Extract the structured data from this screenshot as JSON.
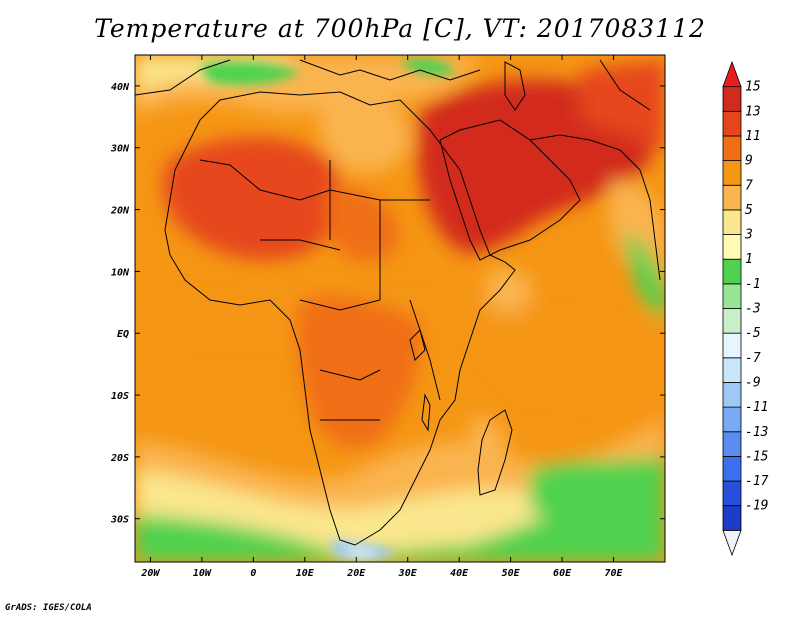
{
  "title": "Temperature at 700hPa [C], VT: 2017083112",
  "credit": "GrADS: IGES/COLA",
  "map": {
    "lon_range": [
      -23,
      80
    ],
    "lat_range": [
      -37,
      45
    ],
    "lat_ticks": [
      {
        "value": 40,
        "label": "40N"
      },
      {
        "value": 30,
        "label": "30N"
      },
      {
        "value": 20,
        "label": "20N"
      },
      {
        "value": 10,
        "label": "10N"
      },
      {
        "value": 0,
        "label": "EQ"
      },
      {
        "value": -10,
        "label": "10S"
      },
      {
        "value": -20,
        "label": "20S"
      },
      {
        "value": -30,
        "label": "30S"
      }
    ],
    "lon_ticks": [
      {
        "value": -20,
        "label": "20W"
      },
      {
        "value": -10,
        "label": "10W"
      },
      {
        "value": 0,
        "label": "0"
      },
      {
        "value": 10,
        "label": "10E"
      },
      {
        "value": 20,
        "label": "20E"
      },
      {
        "value": 30,
        "label": "30E"
      },
      {
        "value": 40,
        "label": "40E"
      },
      {
        "value": 50,
        "label": "50E"
      },
      {
        "value": 60,
        "label": "60E"
      },
      {
        "value": 70,
        "label": "70E"
      }
    ]
  },
  "colorbar": {
    "labels": [
      "15",
      "13",
      "11",
      "9",
      "7",
      "5",
      "3",
      "1",
      "-1",
      "-3",
      "-5",
      "-7",
      "-9",
      "-11",
      "-13",
      "-15",
      "-17",
      "-19"
    ],
    "colors": [
      "#f0f0ff",
      "#1e3cc8",
      "#2850dc",
      "#3c6ef0",
      "#5a8cf0",
      "#78aaf5",
      "#a0c8f5",
      "#c8e6fa",
      "#e6f5ff",
      "#c8f0c8",
      "#96e696",
      "#50d250",
      "#fffab4",
      "#fae68c",
      "#fab450",
      "#f59614",
      "#f06e14",
      "#e6461e",
      "#d22a1e",
      "#e61e1e"
    ]
  }
}
